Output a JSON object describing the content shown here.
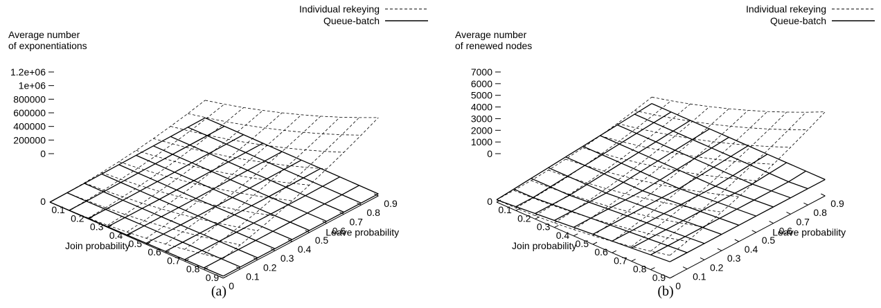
{
  "chart_data": [
    {
      "type": "surface3d",
      "caption": "(a)",
      "zlabel_lines": [
        "Average number",
        "of exponentiations"
      ],
      "xlabel": "Join probability",
      "ylabel": "Leave probability",
      "x_ticks": [
        "0",
        "0.1",
        "0.2",
        "0.3",
        "0.4",
        "0.5",
        "0.6",
        "0.7",
        "0.8",
        "0.9"
      ],
      "y_ticks": [
        "0",
        "0.1",
        "0.2",
        "0.3",
        "0.4",
        "0.5",
        "0.6",
        "0.7",
        "0.8",
        "0.9"
      ],
      "z_ticks": [
        "0",
        "200000",
        "400000",
        "600000",
        "800000",
        "1e+06",
        "1.2e+06"
      ],
      "zlim": [
        0,
        1200000
      ],
      "x": [
        0,
        0.1,
        0.2,
        0.3,
        0.4,
        0.5,
        0.6,
        0.7,
        0.8,
        0.9
      ],
      "y": [
        0,
        0.1,
        0.2,
        0.3,
        0.4,
        0.5,
        0.6,
        0.7,
        0.8,
        0.9
      ],
      "legend_position": "top-right",
      "series": [
        {
          "name": "Individual rekeying",
          "style": "dashed",
          "model": {
            "kind": "sum",
            "base": 0,
            "scale": 1150000
          }
        },
        {
          "name": "Queue-batch",
          "style": "solid",
          "model": {
            "kind": "max",
            "base": 0,
            "scale": 30000
          }
        }
      ]
    },
    {
      "type": "surface3d",
      "caption": "(b)",
      "zlabel_lines": [
        "Average number",
        "of renewed nodes"
      ],
      "xlabel": "Join probability",
      "ylabel": "Leave probability",
      "x_ticks": [
        "0",
        "0.1",
        "0.2",
        "0.3",
        "0.4",
        "0.5",
        "0.6",
        "0.7",
        "0.8",
        "0.9"
      ],
      "y_ticks": [
        "0",
        "0.1",
        "0.2",
        "0.3",
        "0.4",
        "0.5",
        "0.6",
        "0.7",
        "0.8",
        "0.9"
      ],
      "z_ticks": [
        "0",
        "1000",
        "2000",
        "3000",
        "4000",
        "5000",
        "6000",
        "7000"
      ],
      "zlim": [
        0,
        7000
      ],
      "x": [
        0,
        0.1,
        0.2,
        0.3,
        0.4,
        0.5,
        0.6,
        0.7,
        0.8,
        0.9
      ],
      "y": [
        0,
        0.1,
        0.2,
        0.3,
        0.4,
        0.5,
        0.6,
        0.7,
        0.8,
        0.9
      ],
      "legend_position": "top-right",
      "series": [
        {
          "name": "Individual rekeying",
          "style": "dashed",
          "model": {
            "kind": "sum",
            "base": 200,
            "scale": 7000
          }
        },
        {
          "name": "Queue-batch",
          "style": "solid",
          "model": {
            "kind": "max",
            "base": 200,
            "scale": 1200
          }
        }
      ]
    }
  ]
}
